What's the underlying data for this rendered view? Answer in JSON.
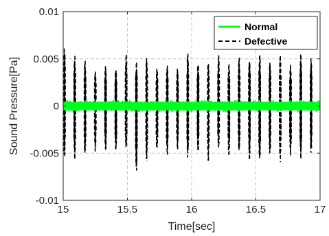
{
  "chart_data": {
    "type": "line",
    "xlabel": "Time[sec]",
    "ylabel": "Sound Pressure[Pa]",
    "xlim": [
      15,
      17
    ],
    "ylim": [
      -0.01,
      0.01
    ],
    "x_ticks": [
      15,
      15.5,
      16,
      16.5,
      17
    ],
    "x_tick_labels": [
      "15",
      "15.5",
      "16",
      "16.5",
      "17"
    ],
    "y_ticks": [
      -0.01,
      -0.005,
      0,
      0.005,
      0.01
    ],
    "y_tick_labels": [
      "-0.01",
      "-0.005",
      "0",
      "0.005",
      "0.01"
    ],
    "grid": true,
    "legend_position": "top-right",
    "series": [
      {
        "name": "Normal",
        "color": "#00ff1e",
        "style": "solid",
        "noise_amplitude": 0.0007
      },
      {
        "name": "Defective",
        "color": "#000000",
        "style": "dashed",
        "impulse_times": [
          15.01,
          15.09,
          15.17,
          15.25,
          15.33,
          15.41,
          15.49,
          15.57,
          15.65,
          15.73,
          15.81,
          15.89,
          15.97,
          16.05,
          16.13,
          16.21,
          16.29,
          16.37,
          16.45,
          16.53,
          16.61,
          16.69,
          16.77,
          16.85,
          16.93
        ],
        "impulse_pos_peaks": [
          0.0065,
          0.0055,
          0.005,
          0.0038,
          0.0045,
          0.0042,
          0.0058,
          0.0048,
          0.0055,
          0.0044,
          0.0046,
          0.0042,
          0.0058,
          0.005,
          0.005,
          0.0057,
          0.0047,
          0.0053,
          0.0053,
          0.0058,
          0.005,
          0.0055,
          0.0047,
          0.0057,
          0.0053
        ],
        "impulse_neg_peaks": [
          -0.0055,
          -0.0058,
          -0.0055,
          -0.005,
          -0.0052,
          -0.0053,
          -0.0048,
          -0.0073,
          -0.006,
          -0.005,
          -0.0055,
          -0.005,
          -0.0057,
          -0.0055,
          -0.006,
          -0.0048,
          -0.0058,
          -0.0052,
          -0.0058,
          -0.0062,
          -0.0053,
          -0.0062,
          -0.0055,
          -0.006,
          -0.0052
        ]
      }
    ]
  }
}
